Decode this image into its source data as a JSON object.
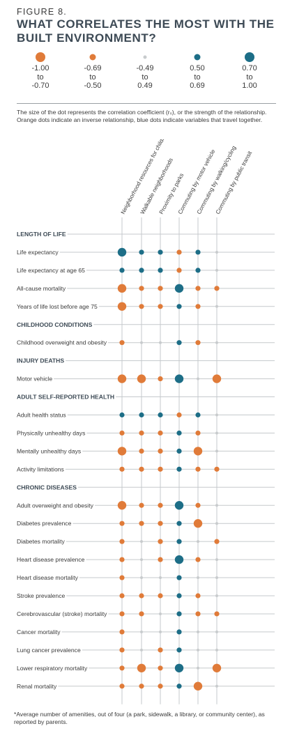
{
  "figure_label": "FIGURE 8.",
  "title": "WHAT CORRELATES THE MOST WITH THE BUILT ENVIRONMENT?",
  "legend": [
    {
      "text": "-1.00\nto\n-0.70",
      "color": "orange",
      "size": 5
    },
    {
      "text": "-0.69\nto\n-0.50",
      "color": "orange",
      "size": 3
    },
    {
      "text": "-0.49\nto\n0.49",
      "color": "gray",
      "size": 1
    },
    {
      "text": "0.50\nto\n0.69",
      "color": "blue",
      "size": 3
    },
    {
      "text": "0.70\nto\n1.00",
      "color": "blue",
      "size": 5
    }
  ],
  "note": "The size of the dot represents the correlation coefficient (rₛ), or the strength of the relationship. Orange dots indicate an inverse relationship, blue dots indicate variables that travel together.",
  "footnote": "*Average number of amenities, out of four (a park, sidewalk, a library, or community center), as reported by parents.",
  "colors": {
    "orange": "#e07b39",
    "blue": "#1d6e87",
    "gray": "#c8cbcd",
    "line": "#c5c9cc",
    "text": "#3a3a3a"
  },
  "chart_data": {
    "type": "table",
    "encoding": "dot size/color = correlation category: o3 large orange, o2 medium orange, o1 small orange, g gray, b1 small blue, b2 medium blue, b3 large blue",
    "columns": [
      "Neighborhood resources for children*",
      "Walkable neighborhoods",
      "Proximity to parks",
      "Commuting by motor vehicle",
      "Commuting by walking/cycling",
      "Commuting by public transit"
    ],
    "rows": [
      {
        "section": "LENGTH OF LIFE"
      },
      {
        "label": "Life expectancy",
        "values": [
          "b3",
          "b1",
          "b1",
          "o1",
          "b1",
          "g"
        ]
      },
      {
        "label": "Life expectancy at age 65",
        "values": [
          "b1",
          "b1",
          "b1",
          "o1",
          "b1",
          "g"
        ]
      },
      {
        "label": "All-cause mortality",
        "values": [
          "o3",
          "o1",
          "o1",
          "b3",
          "o1",
          "o1"
        ]
      },
      {
        "label": "Years of life lost before age 75",
        "values": [
          "o3",
          "o1",
          "o1",
          "b1",
          "o1",
          "g"
        ]
      },
      {
        "section": "CHILDHOOD CONDITIONS"
      },
      {
        "label": "Childhood overweight and obesity",
        "values": [
          "o1",
          "g",
          "g",
          "b1",
          "o1",
          "g"
        ]
      },
      {
        "section": "INJURY DEATHS"
      },
      {
        "label": "Motor vehicle",
        "values": [
          "o3",
          "o3",
          "o1",
          "b3",
          "g",
          "o3"
        ]
      },
      {
        "section": "ADULT SELF-REPORTED HEALTH"
      },
      {
        "label": "Adult health status",
        "values": [
          "b1",
          "b1",
          "b1",
          "o1",
          "b1",
          "g"
        ]
      },
      {
        "label": "Physically unhealthy days",
        "values": [
          "o1",
          "o1",
          "o1",
          "b1",
          "o1",
          "g"
        ]
      },
      {
        "label": "Mentally unhealthy days",
        "values": [
          "o3",
          "o1",
          "o1",
          "b1",
          "o3",
          "g"
        ]
      },
      {
        "label": "Activity limitations",
        "values": [
          "o1",
          "o1",
          "o1",
          "b1",
          "o1",
          "o1"
        ]
      },
      {
        "section": "CHRONIC DISEASES"
      },
      {
        "label": "Adult overweight and obesity",
        "values": [
          "o3",
          "o1",
          "o1",
          "b3",
          "o1",
          "g"
        ]
      },
      {
        "label": "Diabetes prevalence",
        "values": [
          "o1",
          "o1",
          "o1",
          "b1",
          "o3",
          "g"
        ]
      },
      {
        "label": "Diabetes mortality",
        "values": [
          "o1",
          "g",
          "o1",
          "b1",
          "g",
          "o1"
        ]
      },
      {
        "label": "Heart disease prevalence",
        "values": [
          "o1",
          "g",
          "o1",
          "b3",
          "o1",
          "g"
        ]
      },
      {
        "label": "Heart disease mortality",
        "values": [
          "o1",
          "g",
          "g",
          "b1",
          "g",
          "g"
        ]
      },
      {
        "label": "Stroke prevalence",
        "values": [
          "o1",
          "o1",
          "o1",
          "b1",
          "o1",
          "g"
        ]
      },
      {
        "label": "Cerebrovascular (stroke) mortality",
        "values": [
          "o1",
          "o1",
          "g",
          "b1",
          "o1",
          "o1"
        ]
      },
      {
        "label": "Cancer mortality",
        "values": [
          "o1",
          "g",
          "g",
          "b1",
          "g",
          "g"
        ]
      },
      {
        "label": "Lung cancer prevalence",
        "values": [
          "o1",
          "g",
          "o1",
          "b1",
          "g",
          "g"
        ]
      },
      {
        "label": "Lower respiratory mortality",
        "values": [
          "o1",
          "o3",
          "o1",
          "b3",
          "g",
          "o3"
        ]
      },
      {
        "label": "Renal mortality",
        "values": [
          "o1",
          "o1",
          "o1",
          "b1",
          "o3",
          "g"
        ]
      }
    ]
  }
}
